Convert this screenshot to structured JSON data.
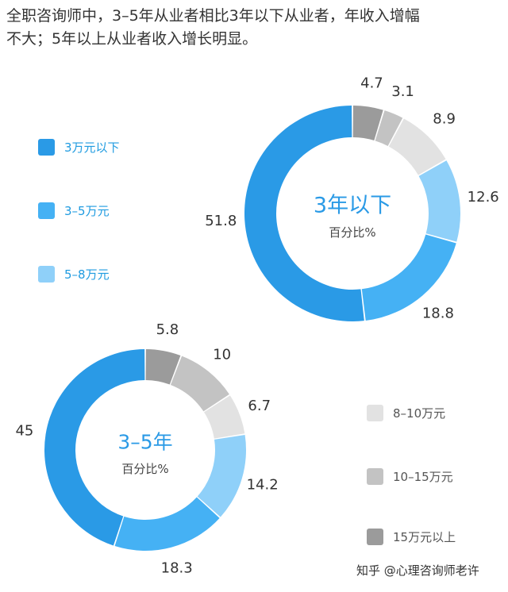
{
  "headline": {
    "line1": "全职咨询师中，3–5年从业者相比3年以下从业者，年收入增幅",
    "line2": "不大；5年以上从业者收入增长明显。"
  },
  "legend": [
    {
      "label": "3万元以下",
      "color": "#2a9ae6"
    },
    {
      "label": "3–5万元",
      "color": "#45b1f4"
    },
    {
      "label": "5–8万元",
      "color": "#8fd0f9"
    },
    {
      "label": "8–10万元",
      "color": "#e2e2e2"
    },
    {
      "label": "10–15万元",
      "color": "#c3c3c3"
    },
    {
      "label": "15万元以上",
      "color": "#9b9b9b"
    }
  ],
  "chart_data": [
    {
      "type": "pie",
      "variant": "donut",
      "center_title": "3年以下",
      "center_subtitle": "百分比%",
      "categories": [
        "3万元以下",
        "3–5万元",
        "5–8万元",
        "8–10万元",
        "10–15万元",
        "15万元以上"
      ],
      "values": [
        51.8,
        18.8,
        12.6,
        8.9,
        3.1,
        4.7
      ]
    },
    {
      "type": "pie",
      "variant": "donut",
      "center_title": "3–5年",
      "center_subtitle": "百分比%",
      "categories": [
        "3万元以下",
        "3–5万元",
        "5–8万元",
        "8–10万元",
        "10–15万元",
        "15万元以上"
      ],
      "values": [
        45,
        18.3,
        14.2,
        6.7,
        10,
        5.8
      ]
    }
  ],
  "watermark": "知乎 @心理咨询师老许"
}
